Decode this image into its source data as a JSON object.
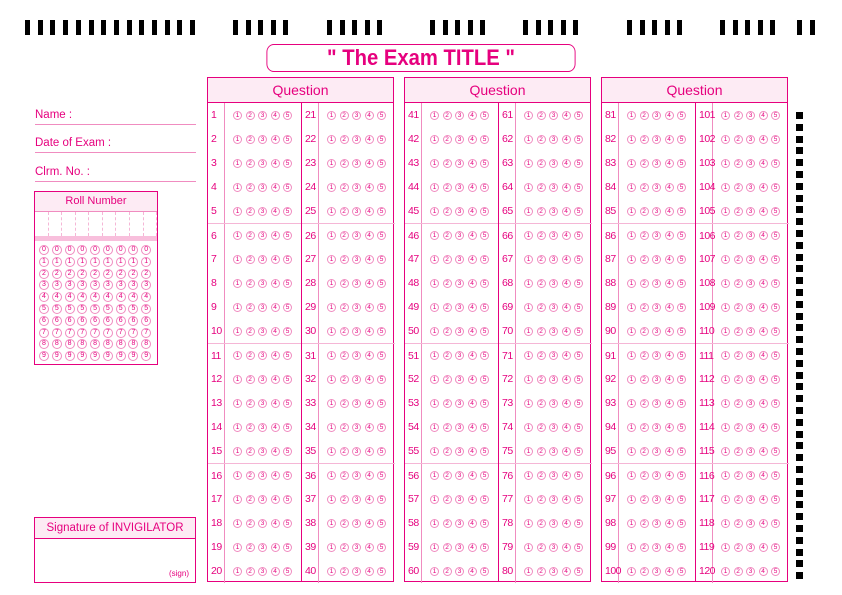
{
  "title": "\" The Exam TITLE \"",
  "fields": {
    "name": "Name  :",
    "date": "Date of Exam  :",
    "clrm": "Clrm. No.  :"
  },
  "roll": {
    "header": "Roll Number",
    "digits": [
      "0",
      "1",
      "2",
      "3",
      "4",
      "5",
      "6",
      "7",
      "8",
      "9"
    ],
    "columns": 9
  },
  "signature": {
    "header": "Signature of INVIGILATOR",
    "sign": "(sign)"
  },
  "options": [
    "1",
    "2",
    "3",
    "4",
    "5"
  ],
  "blocks": [
    {
      "header": "Question",
      "start": [
        1,
        21
      ]
    },
    {
      "header": "Question",
      "start": [
        41,
        61
      ]
    },
    {
      "header": "Question",
      "start": [
        81,
        101
      ]
    }
  ],
  "rows_per_column": 20,
  "colors": {
    "accent": "#e6007e",
    "header_bg": "#fdebf4",
    "marks": "#000000"
  }
}
